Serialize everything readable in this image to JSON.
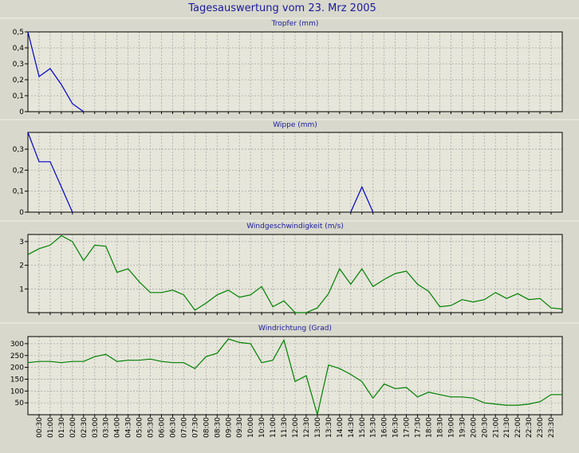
{
  "title": "Tagesauswertung vom 23. Mrz 2005",
  "colors": {
    "background": "#d8d8cc",
    "plot_background": "#e6e6da",
    "title_text": "#1a1aa0",
    "panel_title": "#1a1aa0",
    "grid": "#a8a8a8",
    "axis": "#000000",
    "rain_line": "#0000d0",
    "wind_line": "#008000"
  },
  "chart_data": [
    {
      "type": "line",
      "title": "Tropfer (mm)",
      "color": "#0000d0",
      "ylim": [
        0,
        0.5
      ],
      "yticks": [
        0,
        0.1,
        0.2,
        0.3,
        0.4,
        0.5
      ],
      "ytick_labels": [
        "0",
        "0,1",
        "0,2",
        "0,3",
        "0,4",
        "0,5"
      ],
      "x": [
        "00:00",
        "00:30",
        "01:00",
        "01:30",
        "02:00",
        "02:30"
      ],
      "values": [
        0.5,
        0.22,
        0.27,
        0.17,
        0.05,
        0.0
      ],
      "grid": true
    },
    {
      "type": "line",
      "title": "Wippe (mm)",
      "color": "#0000d0",
      "ylim": [
        0,
        0.38
      ],
      "yticks": [
        0,
        0.1,
        0.2,
        0.3
      ],
      "ytick_labels": [
        "0",
        "0,1",
        "0,2",
        "0,3"
      ],
      "x": [
        "00:00",
        "00:30",
        "01:00",
        "01:30",
        "02:00",
        "NaN",
        "14:30",
        "15:00",
        "15:30"
      ],
      "values": [
        0.38,
        0.24,
        0.24,
        0.12,
        0.0,
        null,
        0.0,
        0.12,
        0.0
      ],
      "grid": true
    },
    {
      "type": "line",
      "title": "Windgeschwindigkeit (m/s)",
      "color": "#008000",
      "ylim": [
        0,
        3.3
      ],
      "yticks": [
        1,
        2,
        3
      ],
      "ytick_labels": [
        "1",
        "2",
        "3"
      ],
      "x": [
        "00:00",
        "00:30",
        "01:00",
        "01:30",
        "02:00",
        "02:30",
        "03:00",
        "03:30",
        "04:00",
        "04:30",
        "05:00",
        "05:30",
        "06:00",
        "06:30",
        "07:00",
        "07:30",
        "08:00",
        "08:30",
        "09:00",
        "09:30",
        "10:00",
        "10:30",
        "11:00",
        "11:30",
        "12:00",
        "12:30",
        "13:00",
        "13:30",
        "14:00",
        "14:30",
        "15:00",
        "15:30",
        "16:00",
        "16:30",
        "17:00",
        "17:30",
        "18:00",
        "18:30",
        "19:00",
        "19:30",
        "20:00",
        "20:30",
        "21:00",
        "21:30",
        "22:00",
        "22:30",
        "23:00",
        "23:30",
        "24:00"
      ],
      "values": [
        2.45,
        2.7,
        2.85,
        3.25,
        3.0,
        2.2,
        2.85,
        2.8,
        1.7,
        1.85,
        1.3,
        0.85,
        0.85,
        0.95,
        0.75,
        0.1,
        0.4,
        0.75,
        0.95,
        0.65,
        0.75,
        1.1,
        0.25,
        0.5,
        0.0,
        0.0,
        0.2,
        0.8,
        1.85,
        1.2,
        1.85,
        1.1,
        1.4,
        1.65,
        1.75,
        1.2,
        0.9,
        0.25,
        0.3,
        0.55,
        0.45,
        0.55,
        0.85,
        0.6,
        0.8,
        0.55,
        0.6,
        0.2,
        0.15
      ],
      "grid": true
    },
    {
      "type": "line",
      "title": "Windrichtung (Grad)",
      "color": "#008000",
      "ylim": [
        0,
        330
      ],
      "yticks": [
        50,
        100,
        150,
        200,
        250,
        300
      ],
      "ytick_labels": [
        "50",
        "100",
        "150",
        "200",
        "250",
        "300"
      ],
      "x": [
        "00:00",
        "00:30",
        "01:00",
        "01:30",
        "02:00",
        "02:30",
        "03:00",
        "03:30",
        "04:00",
        "04:30",
        "05:00",
        "05:30",
        "06:00",
        "06:30",
        "07:00",
        "07:30",
        "08:00",
        "08:30",
        "09:00",
        "09:30",
        "10:00",
        "10:30",
        "11:00",
        "11:30",
        "12:00",
        "12:30",
        "13:00",
        "13:30",
        "14:00",
        "14:30",
        "15:00",
        "15:30",
        "16:00",
        "16:30",
        "17:00",
        "17:30",
        "18:00",
        "18:30",
        "19:00",
        "19:30",
        "20:00",
        "20:30",
        "21:00",
        "21:30",
        "22:00",
        "22:30",
        "23:00",
        "23:30",
        "24:00"
      ],
      "values": [
        220,
        225,
        225,
        220,
        225,
        225,
        245,
        255,
        225,
        230,
        230,
        235,
        225,
        220,
        220,
        195,
        245,
        260,
        320,
        305,
        300,
        220,
        230,
        315,
        140,
        165,
        0,
        210,
        195,
        170,
        140,
        70,
        130,
        110,
        115,
        75,
        95,
        85,
        75,
        75,
        70,
        50,
        45,
        40,
        40,
        45,
        55,
        85,
        85
      ],
      "grid": true
    }
  ],
  "x_axis": {
    "tick_labels": [
      "00:30",
      "01:00",
      "01:30",
      "02:00",
      "02:30",
      "03:00",
      "03:30",
      "04:00",
      "04:30",
      "05:00",
      "05:30",
      "06:00",
      "06:30",
      "07:00",
      "07:30",
      "08:00",
      "08:30",
      "09:00",
      "09:30",
      "10:00",
      "10:30",
      "11:00",
      "11:30",
      "12:00",
      "12:30",
      "13:00",
      "13:30",
      "14:00",
      "14:30",
      "15:00",
      "15:30",
      "16:00",
      "16:30",
      "17:00",
      "17:30",
      "18:00",
      "18:30",
      "19:00",
      "19:30",
      "20:00",
      "20:30",
      "21:00",
      "21:30",
      "22:00",
      "22:30",
      "23:00",
      "23:30"
    ]
  }
}
